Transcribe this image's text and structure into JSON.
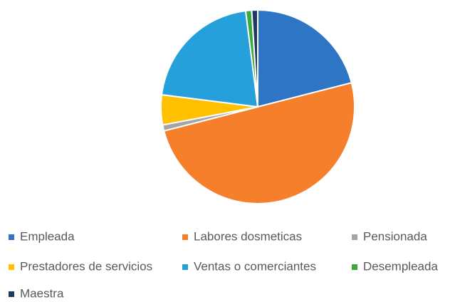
{
  "chart_data": {
    "type": "pie",
    "categories": [
      "Empleada",
      "Labores dosmeticas",
      "Pensionada",
      "Prestadores de servicios",
      "Ventas o comerciantes",
      "Desempleada",
      "Maestra"
    ],
    "values": [
      21,
      50,
      1,
      5,
      21,
      1,
      1
    ],
    "colors": [
      "#2e75c6",
      "#f57f2a",
      "#a5a5a5",
      "#ffc000",
      "#26a0da",
      "#3aab3a",
      "#1f3864"
    ],
    "legend": "bottom"
  }
}
